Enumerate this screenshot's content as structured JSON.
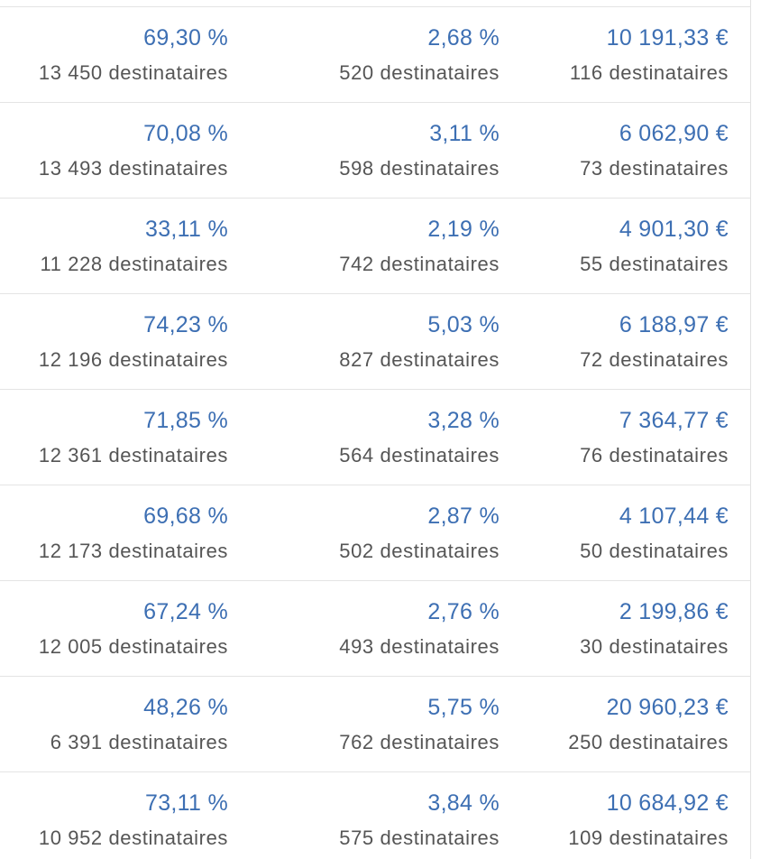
{
  "colors": {
    "value": "#3d6fb3",
    "sub": "#555555",
    "divider": "#e4e4e4"
  },
  "rows": [
    {
      "open_rate": "69,30 %",
      "open_recipients": "13 450 destinataires",
      "click_rate": "2,68 %",
      "click_recipients": "520 destinataires",
      "revenue": "10 191,33 €",
      "revenue_recipients": "116 destinataires"
    },
    {
      "open_rate": "70,08 %",
      "open_recipients": "13 493 destinataires",
      "click_rate": "3,11 %",
      "click_recipients": "598 destinataires",
      "revenue": "6 062,90 €",
      "revenue_recipients": "73 destinataires"
    },
    {
      "open_rate": "33,11 %",
      "open_recipients": "11 228 destinataires",
      "click_rate": "2,19 %",
      "click_recipients": "742 destinataires",
      "revenue": "4 901,30 €",
      "revenue_recipients": "55 destinataires"
    },
    {
      "open_rate": "74,23 %",
      "open_recipients": "12 196 destinataires",
      "click_rate": "5,03 %",
      "click_recipients": "827 destinataires",
      "revenue": "6 188,97 €",
      "revenue_recipients": "72 destinataires"
    },
    {
      "open_rate": "71,85 %",
      "open_recipients": "12 361 destinataires",
      "click_rate": "3,28 %",
      "click_recipients": "564 destinataires",
      "revenue": "7 364,77 €",
      "revenue_recipients": "76 destinataires"
    },
    {
      "open_rate": "69,68 %",
      "open_recipients": "12 173 destinataires",
      "click_rate": "2,87 %",
      "click_recipients": "502 destinataires",
      "revenue": "4 107,44 €",
      "revenue_recipients": "50 destinataires"
    },
    {
      "open_rate": "67,24 %",
      "open_recipients": "12 005 destinataires",
      "click_rate": "2,76 %",
      "click_recipients": "493 destinataires",
      "revenue": "2 199,86 €",
      "revenue_recipients": "30 destinataires"
    },
    {
      "open_rate": "48,26 %",
      "open_recipients": "6 391 destinataires",
      "click_rate": "5,75 %",
      "click_recipients": "762 destinataires",
      "revenue": "20 960,23 €",
      "revenue_recipients": "250 destinataires"
    },
    {
      "open_rate": "73,11 %",
      "open_recipients": "10 952 destinataires",
      "click_rate": "3,84 %",
      "click_recipients": "575 destinataires",
      "revenue": "10 684,92 €",
      "revenue_recipients": "109 destinataires"
    }
  ]
}
